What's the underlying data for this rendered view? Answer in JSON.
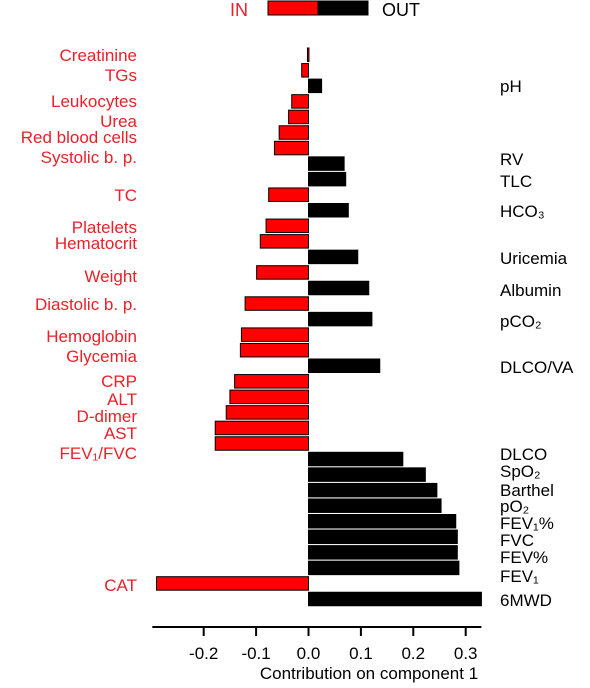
{
  "chart_data": {
    "type": "bar",
    "orientation": "horizontal",
    "xlabel": "Contribution on component 1",
    "xlim": [
      -0.3,
      0.33
    ],
    "xticks": [
      "-0.2",
      "-0.1",
      "0.0",
      "0.1",
      "0.2",
      "0.3"
    ],
    "legend": {
      "position": "top",
      "entries": [
        {
          "label": "IN",
          "color": "#ff0000"
        },
        {
          "label": "OUT",
          "color": "#000000"
        }
      ]
    },
    "series": [
      {
        "name": "IN",
        "color": "#ff0000",
        "label_color": "#e8212a",
        "label_side": "left",
        "items": [
          {
            "label": "Creatinine",
            "value": -0.002
          },
          {
            "label": "TGs",
            "value": -0.013
          },
          {
            "label": "Leukocytes",
            "value": -0.032
          },
          {
            "label": "Urea",
            "value": -0.038
          },
          {
            "label": "Red blood cells",
            "value": -0.056
          },
          {
            "label": "Systolic b. p.",
            "value": -0.065
          },
          {
            "label": "TC",
            "value": -0.076
          },
          {
            "label": "Platelets",
            "value": -0.081
          },
          {
            "label": "Hematocrit",
            "value": -0.092
          },
          {
            "label": "Weight",
            "value": -0.099
          },
          {
            "label": "Diastolic b. p.",
            "value": -0.121
          },
          {
            "label": "Hemoglobin",
            "value": -0.128
          },
          {
            "label": "Glycemia",
            "value": -0.13
          },
          {
            "label": "CRP",
            "value": -0.141
          },
          {
            "label": "ALT",
            "value": -0.15
          },
          {
            "label": "D-dimer",
            "value": -0.157
          },
          {
            "label": "AST",
            "value": -0.178
          },
          {
            "label": "FEV₁/FVC",
            "value": -0.178
          },
          {
            "label": "CAT",
            "value": -0.29
          }
        ]
      },
      {
        "name": "OUT",
        "color": "#000000",
        "label_color": "#000000",
        "label_side": "right",
        "items": [
          {
            "label": "pH",
            "value": 0.025
          },
          {
            "label": "RV",
            "value": 0.068
          },
          {
            "label": "TLC",
            "value": 0.071
          },
          {
            "label": "HCO₃",
            "value": 0.076
          },
          {
            "label": "Uricemia",
            "value": 0.094
          },
          {
            "label": "Albumin",
            "value": 0.115
          },
          {
            "label": "pCO₂",
            "value": 0.121
          },
          {
            "label": "DLCO/VA",
            "value": 0.136
          },
          {
            "label": "DLCO",
            "value": 0.18
          },
          {
            "label": "SpO₂",
            "value": 0.223
          },
          {
            "label": "Barthel",
            "value": 0.245
          },
          {
            "label": "pO₂",
            "value": 0.253
          },
          {
            "label": "FEV₁%",
            "value": 0.281
          },
          {
            "label": "FVC",
            "value": 0.284
          },
          {
            "label": "FEV%",
            "value": 0.284
          },
          {
            "label": "FEV₁",
            "value": 0.287
          },
          {
            "label": "6MWD",
            "value": 0.33
          }
        ]
      }
    ]
  }
}
